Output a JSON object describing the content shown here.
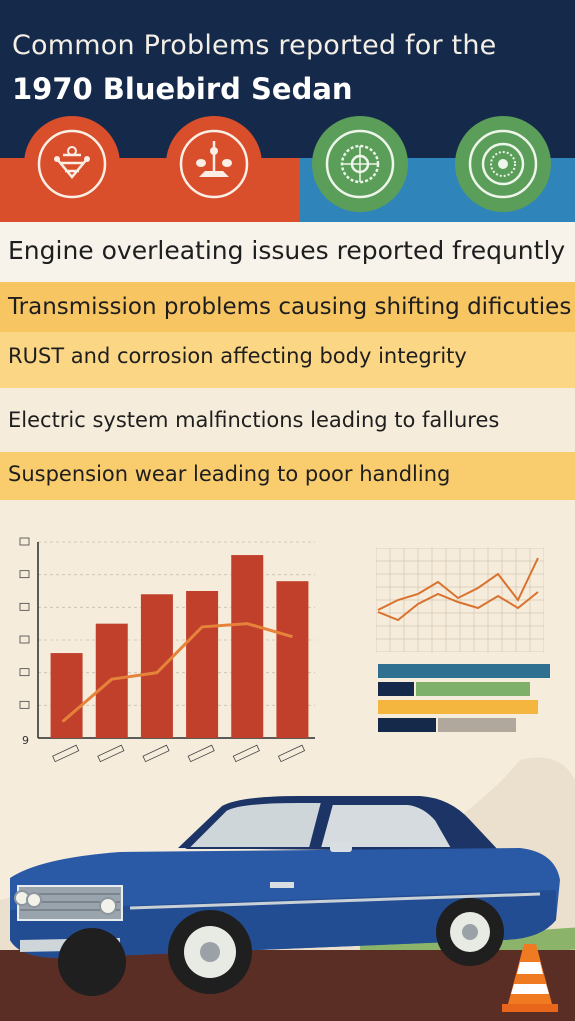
{
  "header": {
    "title_line1": "Common Problems reported for the",
    "title_line2": "1970 Bluebird Sedan",
    "icons": [
      {
        "name": "engine-icon",
        "color": "#d94f2c"
      },
      {
        "name": "transmission-icon",
        "color": "#d94f2c"
      },
      {
        "name": "wheel-rust-icon",
        "color": "#5a9e5a"
      },
      {
        "name": "suspension-wheel-icon",
        "color": "#5a9e5a"
      }
    ]
  },
  "problems": [
    {
      "text": "Engine overleating issues reported frequntly",
      "bg": "#f8f3ea"
    },
    {
      "text": "Transmission problems causing shifting dificuties",
      "bg": "#f7c562"
    },
    {
      "text": "RUST and corrosion affecting body integrity",
      "bg": "#fbd684"
    },
    {
      "text": "Electric system malfinctions leading to fallures",
      "bg": "#f5ecdc"
    },
    {
      "text": "Suspension wear leading to poor handling",
      "bg": "#f9cd6e"
    }
  ],
  "chart_data": {
    "type": "bar",
    "categories": [
      "1",
      "2",
      "3",
      "4",
      "5",
      "6"
    ],
    "values": [
      26,
      35,
      44,
      45,
      56,
      48
    ],
    "line_values": [
      5,
      18,
      20,
      34,
      35,
      31
    ],
    "ylim": [
      0,
      60
    ],
    "ytick_labels": [
      "",
      "",
      "",
      "",
      "",
      ""
    ],
    "bottom_left_label": "9",
    "bar_color": "#c0402c",
    "line_color": "#e6833a"
  },
  "colors": {
    "navy": "#15294a",
    "orange": "#d94f2c",
    "blue": "#2f84b9",
    "green": "#5a9e5a",
    "car_blue": "#2a5aa6",
    "cream": "#f5ecdc"
  }
}
